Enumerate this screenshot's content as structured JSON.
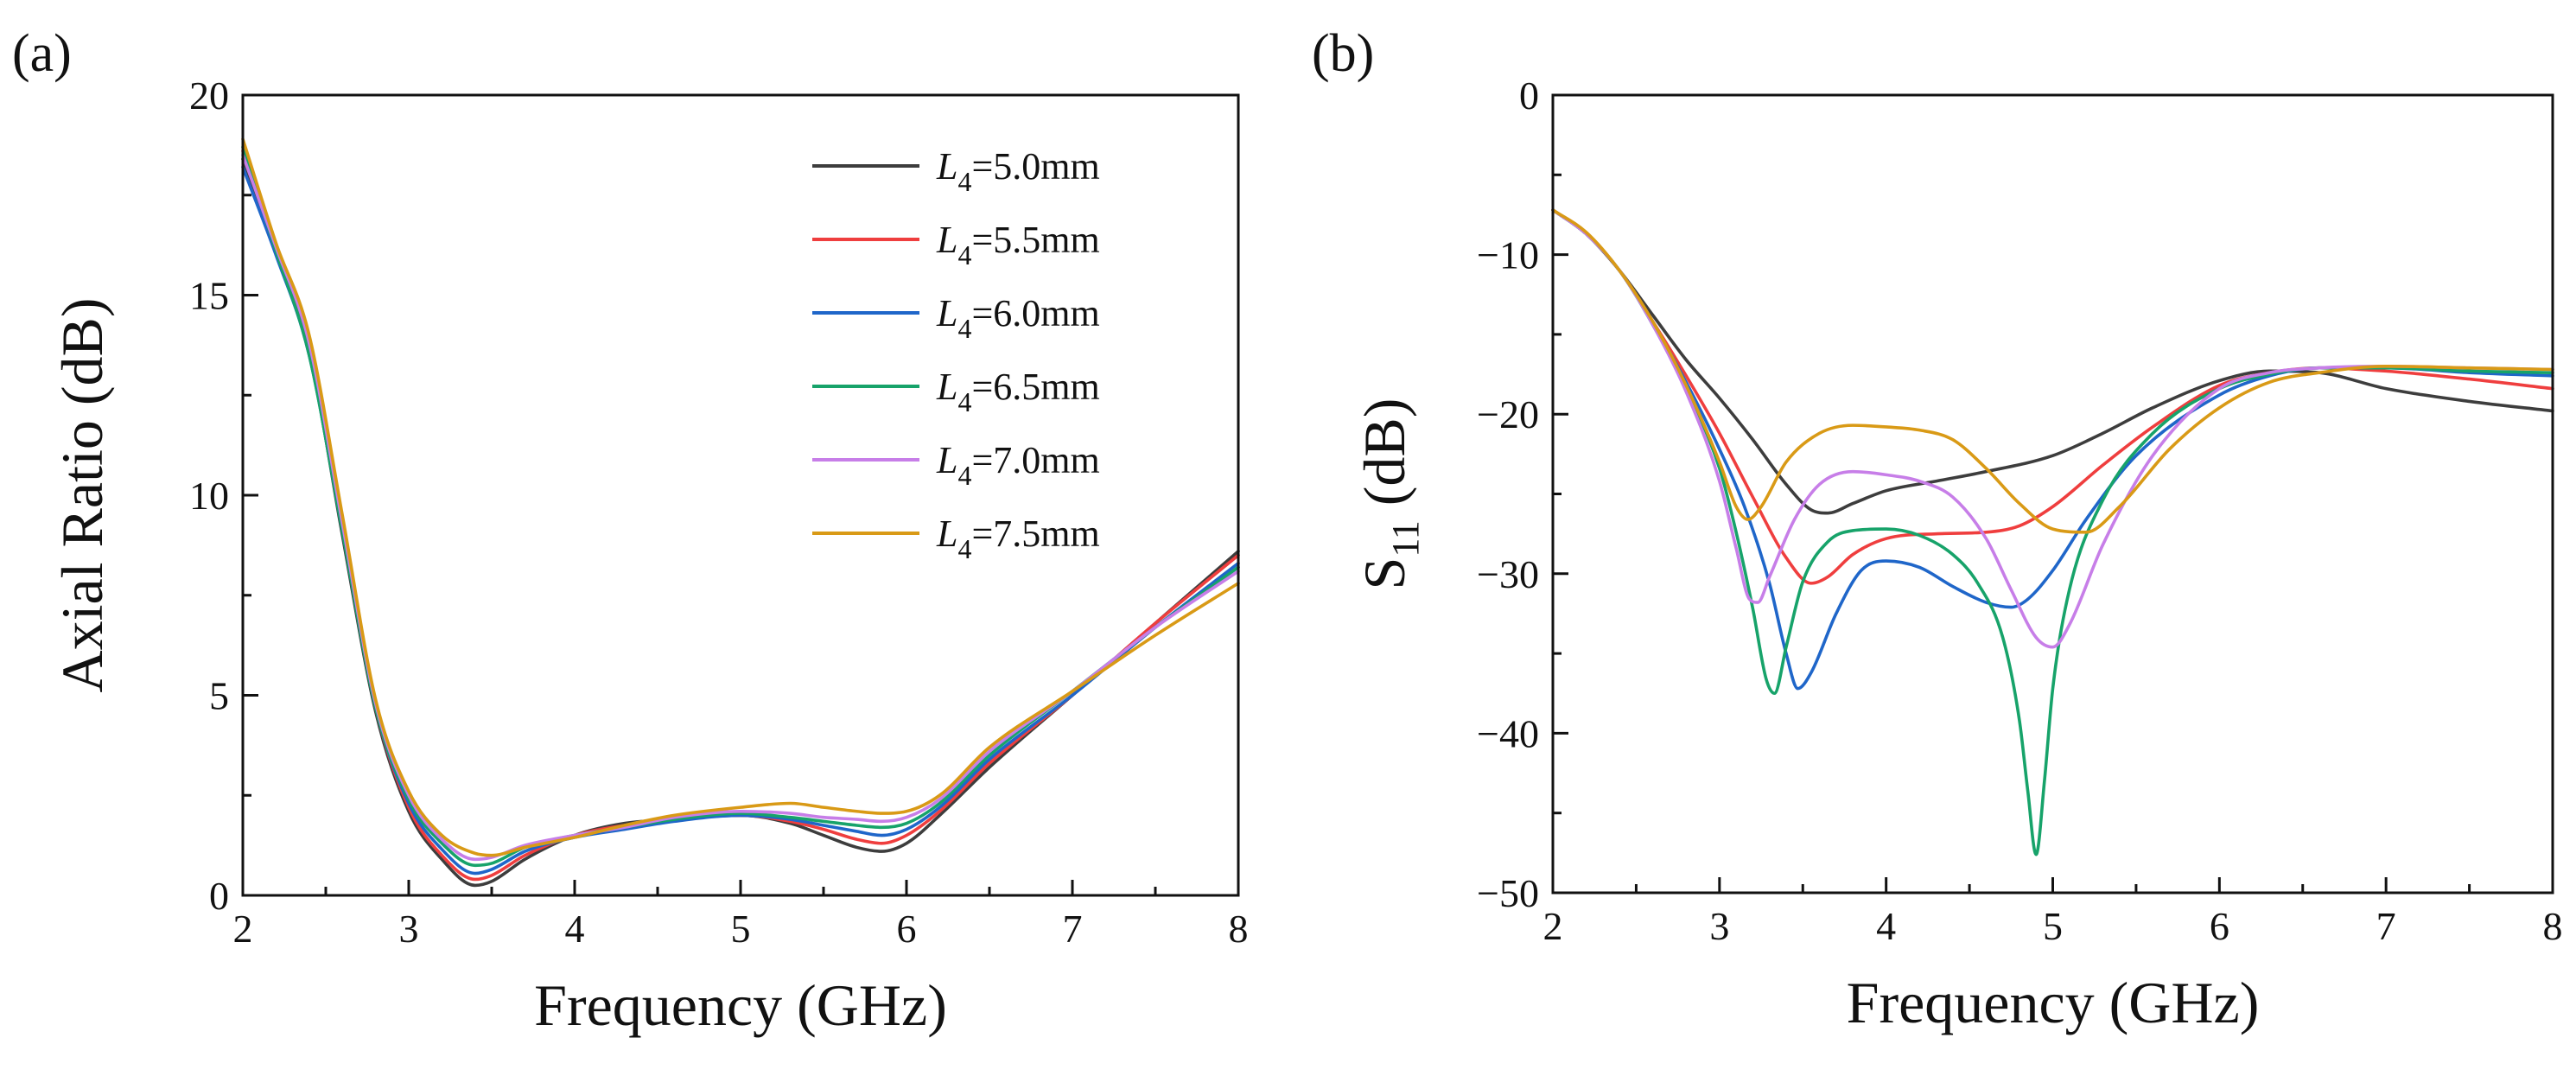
{
  "figure": {
    "panel_a_label": "(a)",
    "panel_b_label": "(b)"
  },
  "colors": {
    "L5.0": "#3d3d3d",
    "L5.5": "#ef3e3e",
    "L6.0": "#1f66c9",
    "L6.5": "#17a36a",
    "L7.0": "#c77ee8",
    "L7.5": "#d99a16"
  },
  "chart_data": [
    {
      "type": "line",
      "panel": "(a)",
      "title": "",
      "xlabel": "Frequency (GHz)",
      "ylabel": "Axial Ratio (dB)",
      "xlim": [
        2,
        8
      ],
      "ylim": [
        0,
        20
      ],
      "xticks": [
        2,
        3,
        4,
        5,
        6,
        7,
        8
      ],
      "yticks": [
        0,
        5,
        10,
        15,
        20
      ],
      "grid": false,
      "legend": {
        "position": "top-right",
        "entries": [
          {
            "symbol": "L",
            "sub": "4",
            "rest": "=5.0mm"
          },
          {
            "symbol": "L",
            "sub": "4",
            "rest": "=5.5mm"
          },
          {
            "symbol": "L",
            "sub": "4",
            "rest": "=6.0mm"
          },
          {
            "symbol": "L",
            "sub": "4",
            "rest": "=6.5mm"
          },
          {
            "symbol": "L",
            "sub": "4",
            "rest": "=7.0mm"
          },
          {
            "symbol": "L",
            "sub": "4",
            "rest": "=7.5mm"
          }
        ]
      },
      "series": [
        {
          "name": "L4=5.0mm",
          "color_key": "L5.0",
          "x": [
            2.0,
            2.2,
            2.4,
            2.6,
            2.8,
            3.0,
            3.2,
            3.4,
            3.5,
            3.7,
            4.0,
            4.3,
            4.6,
            5.0,
            5.3,
            5.5,
            5.7,
            5.85,
            6.0,
            6.2,
            6.5,
            7.0,
            7.5,
            8.0
          ],
          "y": [
            18.4,
            16.2,
            13.6,
            9.0,
            4.6,
            2.1,
            0.9,
            0.25,
            0.35,
            0.9,
            1.5,
            1.8,
            1.9,
            2.0,
            1.8,
            1.5,
            1.2,
            1.1,
            1.3,
            2.0,
            3.2,
            5.0,
            6.8,
            8.6
          ]
        },
        {
          "name": "L4=5.5mm",
          "color_key": "L5.5",
          "x": [
            2.0,
            2.2,
            2.4,
            2.6,
            2.8,
            3.0,
            3.2,
            3.4,
            3.5,
            3.7,
            4.0,
            4.3,
            4.6,
            5.0,
            5.3,
            5.5,
            5.7,
            5.85,
            6.0,
            6.2,
            6.5,
            7.0,
            7.5,
            8.0
          ],
          "y": [
            18.6,
            16.2,
            13.7,
            9.2,
            4.7,
            2.2,
            1.0,
            0.4,
            0.5,
            1.0,
            1.5,
            1.75,
            1.9,
            2.0,
            1.85,
            1.65,
            1.4,
            1.3,
            1.5,
            2.1,
            3.3,
            5.0,
            6.8,
            8.5
          ]
        },
        {
          "name": "L4=6.0mm",
          "color_key": "L6.0",
          "x": [
            2.0,
            2.2,
            2.4,
            2.6,
            2.8,
            3.0,
            3.2,
            3.4,
            3.5,
            3.7,
            4.0,
            4.3,
            4.6,
            5.0,
            5.3,
            5.5,
            5.7,
            5.85,
            6.0,
            6.2,
            6.5,
            7.0,
            7.5,
            8.0
          ],
          "y": [
            18.2,
            16.0,
            13.5,
            9.1,
            4.7,
            2.3,
            1.15,
            0.55,
            0.65,
            1.1,
            1.45,
            1.65,
            1.85,
            2.0,
            1.9,
            1.75,
            1.6,
            1.5,
            1.65,
            2.2,
            3.4,
            5.0,
            6.7,
            8.3
          ]
        },
        {
          "name": "L4=6.5mm",
          "color_key": "L6.5",
          "x": [
            2.0,
            2.2,
            2.4,
            2.6,
            2.8,
            3.0,
            3.2,
            3.4,
            3.5,
            3.7,
            4.0,
            4.3,
            4.6,
            5.0,
            5.3,
            5.5,
            5.7,
            5.85,
            6.0,
            6.2,
            6.5,
            7.0,
            7.5,
            8.0
          ],
          "y": [
            18.7,
            16.1,
            13.5,
            9.1,
            4.7,
            2.4,
            1.3,
            0.75,
            0.8,
            1.2,
            1.5,
            1.7,
            1.9,
            2.05,
            1.95,
            1.85,
            1.75,
            1.7,
            1.8,
            2.3,
            3.5,
            5.1,
            6.7,
            8.2
          ]
        },
        {
          "name": "L4=7.0mm",
          "color_key": "L7.0",
          "x": [
            2.0,
            2.2,
            2.4,
            2.6,
            2.8,
            3.0,
            3.2,
            3.4,
            3.5,
            3.7,
            4.0,
            4.3,
            4.6,
            5.0,
            5.3,
            5.5,
            5.7,
            5.85,
            6.0,
            6.2,
            6.5,
            7.0,
            7.5,
            8.0
          ],
          "y": [
            18.5,
            16.2,
            13.8,
            9.3,
            4.8,
            2.5,
            1.4,
            0.9,
            0.95,
            1.25,
            1.5,
            1.7,
            1.95,
            2.1,
            2.05,
            1.95,
            1.9,
            1.85,
            1.95,
            2.4,
            3.6,
            5.1,
            6.7,
            8.1
          ]
        },
        {
          "name": "L4=7.5mm",
          "color_key": "L7.5",
          "x": [
            2.0,
            2.2,
            2.4,
            2.6,
            2.8,
            3.0,
            3.2,
            3.4,
            3.5,
            3.7,
            4.0,
            4.3,
            4.6,
            5.0,
            5.3,
            5.5,
            5.7,
            5.85,
            6.0,
            6.2,
            6.5,
            7.0,
            7.5,
            8.0
          ],
          "y": [
            18.9,
            16.3,
            14.0,
            9.5,
            4.9,
            2.6,
            1.5,
            1.05,
            1.0,
            1.2,
            1.45,
            1.75,
            2.0,
            2.2,
            2.3,
            2.2,
            2.1,
            2.05,
            2.1,
            2.5,
            3.7,
            5.1,
            6.5,
            7.8
          ]
        }
      ]
    },
    {
      "type": "line",
      "panel": "(b)",
      "title": "",
      "xlabel": "Frequency (GHz)",
      "ylabel": "S11 (dB)",
      "ylabel_main": "S",
      "ylabel_sub": "11",
      "ylabel_rest": " (dB)",
      "xlim": [
        2,
        8
      ],
      "ylim": [
        -50,
        0
      ],
      "xticks": [
        2,
        3,
        4,
        5,
        6,
        7,
        8
      ],
      "yticks": [
        0,
        -10,
        -20,
        -30,
        -40,
        -50
      ],
      "grid": false,
      "series": [
        {
          "name": "L4=5.0mm",
          "color_key": "L5.0",
          "x": [
            2.0,
            2.2,
            2.4,
            2.6,
            2.8,
            3.0,
            3.2,
            3.4,
            3.55,
            3.65,
            3.8,
            4.0,
            4.3,
            4.6,
            5.0,
            5.3,
            5.6,
            6.0,
            6.3,
            6.6,
            7.0,
            7.5,
            8.0
          ],
          "y": [
            -7.2,
            -8.7,
            -11.0,
            -13.8,
            -16.6,
            -19.0,
            -21.6,
            -24.4,
            -26.0,
            -26.2,
            -25.6,
            -24.8,
            -24.2,
            -23.6,
            -22.6,
            -21.2,
            -19.6,
            -17.9,
            -17.3,
            -17.4,
            -18.4,
            -19.2,
            -19.8
          ]
        },
        {
          "name": "L4=5.5mm",
          "color_key": "L5.5",
          "x": [
            2.0,
            2.2,
            2.4,
            2.6,
            2.8,
            3.0,
            3.2,
            3.4,
            3.55,
            3.65,
            3.8,
            4.0,
            4.3,
            4.6,
            4.8,
            5.0,
            5.3,
            5.6,
            6.0,
            6.3,
            6.6,
            7.0,
            7.5,
            8.0
          ],
          "y": [
            -7.2,
            -8.7,
            -11.0,
            -14.2,
            -17.6,
            -21.2,
            -25.2,
            -29.0,
            -30.6,
            -30.2,
            -28.8,
            -27.8,
            -27.5,
            -27.4,
            -27.0,
            -25.8,
            -23.2,
            -20.8,
            -18.2,
            -17.4,
            -17.1,
            -17.3,
            -17.8,
            -18.4
          ]
        },
        {
          "name": "L4=6.0mm",
          "color_key": "L6.0",
          "x": [
            2.0,
            2.2,
            2.4,
            2.6,
            2.8,
            3.0,
            3.15,
            3.3,
            3.4,
            3.47,
            3.55,
            3.7,
            3.85,
            4.0,
            4.2,
            4.4,
            4.6,
            4.75,
            4.85,
            5.0,
            5.2,
            5.5,
            6.0,
            6.3,
            6.6,
            7.0,
            7.5,
            8.0
          ],
          "y": [
            -7.2,
            -8.7,
            -11.0,
            -14.3,
            -18.0,
            -22.2,
            -25.8,
            -30.6,
            -35.0,
            -37.2,
            -36.2,
            -32.5,
            -29.8,
            -29.2,
            -29.6,
            -30.8,
            -31.8,
            -32.1,
            -31.6,
            -29.8,
            -26.6,
            -22.6,
            -18.8,
            -17.6,
            -17.1,
            -17.1,
            -17.4,
            -17.6
          ]
        },
        {
          "name": "L4=6.5mm",
          "color_key": "L6.5",
          "x": [
            2.0,
            2.2,
            2.4,
            2.6,
            2.8,
            3.0,
            3.1,
            3.2,
            3.28,
            3.33,
            3.4,
            3.5,
            3.65,
            3.8,
            4.0,
            4.2,
            4.4,
            4.55,
            4.7,
            4.8,
            4.85,
            4.9,
            4.95,
            5.0,
            5.1,
            5.3,
            5.6,
            6.0,
            6.3,
            6.6,
            7.0,
            7.5,
            8.0
          ],
          "y": [
            -7.2,
            -8.7,
            -11.0,
            -14.4,
            -18.4,
            -23.4,
            -27.4,
            -32.2,
            -36.6,
            -37.5,
            -34.6,
            -30.5,
            -28.0,
            -27.3,
            -27.2,
            -27.6,
            -28.8,
            -30.6,
            -34.0,
            -39.2,
            -43.6,
            -47.6,
            -43.0,
            -37.2,
            -31.0,
            -25.4,
            -21.2,
            -18.4,
            -17.5,
            -17.1,
            -17.1,
            -17.3,
            -17.4
          ]
        },
        {
          "name": "L4=7.0mm",
          "color_key": "L7.0",
          "x": [
            2.0,
            2.2,
            2.4,
            2.6,
            2.8,
            3.0,
            3.1,
            3.18,
            3.23,
            3.3,
            3.45,
            3.6,
            3.8,
            4.0,
            4.2,
            4.4,
            4.6,
            4.75,
            4.9,
            5.0,
            5.1,
            5.3,
            5.6,
            6.0,
            6.3,
            6.6,
            7.0,
            7.5,
            8.0
          ],
          "y": [
            -7.2,
            -8.7,
            -11.0,
            -14.4,
            -18.6,
            -24.2,
            -28.4,
            -31.6,
            -31.8,
            -30.2,
            -26.6,
            -24.4,
            -23.6,
            -23.8,
            -24.2,
            -25.2,
            -27.8,
            -31.0,
            -34.0,
            -34.6,
            -33.2,
            -28.2,
            -22.6,
            -18.4,
            -17.4,
            -17.1,
            -17.0,
            -17.1,
            -17.2
          ]
        },
        {
          "name": "L4=7.5mm",
          "color_key": "L7.5",
          "x": [
            2.0,
            2.2,
            2.4,
            2.6,
            2.8,
            3.0,
            3.1,
            3.17,
            3.25,
            3.4,
            3.6,
            3.8,
            4.0,
            4.2,
            4.4,
            4.6,
            4.8,
            5.0,
            5.2,
            5.4,
            5.7,
            6.0,
            6.3,
            6.6,
            7.0,
            7.5,
            8.0
          ],
          "y": [
            -7.2,
            -8.6,
            -11.0,
            -14.2,
            -18.2,
            -23.0,
            -25.8,
            -26.6,
            -25.8,
            -23.0,
            -21.2,
            -20.7,
            -20.8,
            -21.0,
            -21.6,
            -23.4,
            -25.6,
            -27.2,
            -27.4,
            -25.8,
            -22.2,
            -19.6,
            -18.0,
            -17.4,
            -17.0,
            -17.1,
            -17.2
          ]
        }
      ]
    }
  ]
}
